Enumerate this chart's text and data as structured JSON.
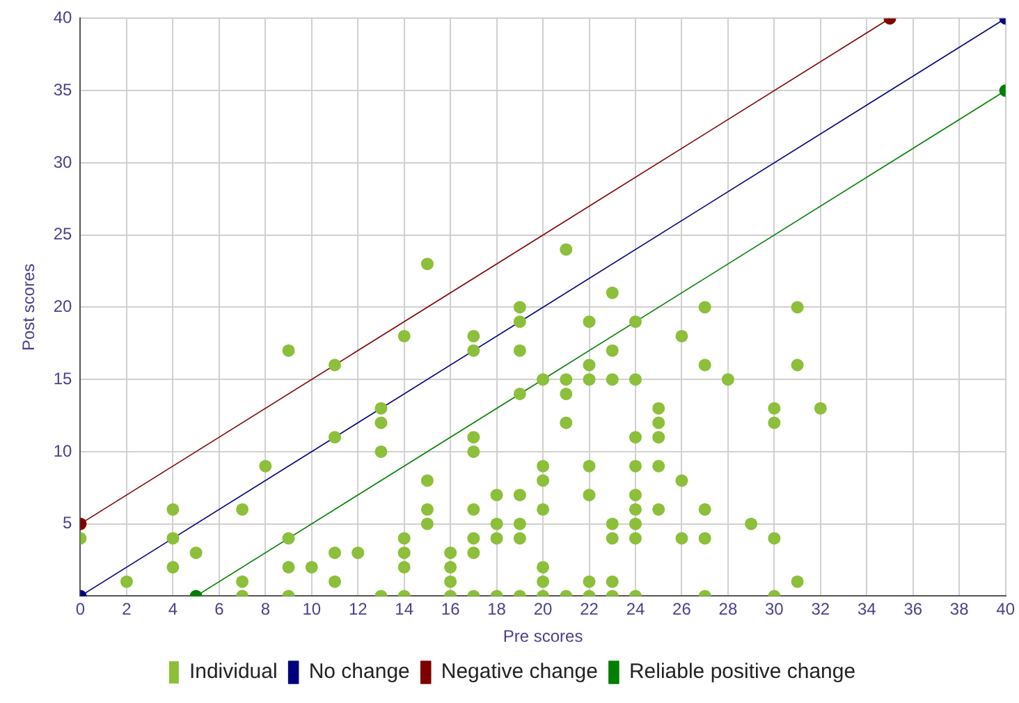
{
  "chart_data": {
    "type": "scatter",
    "xlabel": "Pre scores",
    "ylabel": "Post scores",
    "xlim": [
      0,
      40
    ],
    "xticks": [
      0,
      2,
      4,
      6,
      8,
      10,
      12,
      14,
      16,
      18,
      20,
      22,
      24,
      26,
      28,
      30,
      32,
      34,
      36,
      38,
      40
    ],
    "ylim": [
      0,
      40
    ],
    "yticks": [
      {
        "value": 0,
        "label": null
      },
      5,
      10,
      15,
      20,
      25,
      30,
      35,
      40
    ],
    "grid": true,
    "legend": "bottom",
    "marker": "circle",
    "series": [
      {
        "name": "Individual",
        "color": "#8cbf3a",
        "x": [
          0,
          2,
          4,
          4,
          4,
          5,
          7,
          7,
          7,
          8,
          9,
          9,
          9,
          9,
          10,
          11,
          11,
          11,
          11,
          12,
          13,
          13,
          13,
          13,
          14,
          14,
          14,
          14,
          14,
          15,
          15,
          15,
          15,
          16,
          16,
          16,
          16,
          17,
          17,
          17,
          17,
          17,
          17,
          17,
          17,
          18,
          18,
          18,
          18,
          19,
          19,
          19,
          19,
          19,
          19,
          19,
          19,
          20,
          20,
          20,
          20,
          20,
          20,
          20,
          21,
          21,
          21,
          21,
          21,
          22,
          22,
          22,
          22,
          22,
          22,
          22,
          23,
          23,
          23,
          23,
          23,
          23,
          23,
          24,
          24,
          24,
          24,
          24,
          24,
          24,
          24,
          24,
          25,
          25,
          25,
          25,
          25,
          26,
          26,
          26,
          27,
          27,
          27,
          27,
          27,
          28,
          29,
          30,
          30,
          30,
          30,
          31,
          31,
          31,
          32
        ],
        "values": [
          4,
          1,
          6,
          4,
          2,
          3,
          6,
          1,
          0,
          9,
          17,
          4,
          2,
          0,
          2,
          16,
          11,
          3,
          1,
          3,
          13,
          12,
          10,
          0,
          18,
          4,
          3,
          2,
          0,
          23,
          8,
          6,
          5,
          3,
          2,
          1,
          0,
          18,
          17,
          11,
          10,
          6,
          4,
          3,
          0,
          7,
          5,
          4,
          0,
          20,
          19,
          17,
          14,
          7,
          5,
          4,
          0,
          15,
          9,
          8,
          6,
          2,
          1,
          0,
          24,
          15,
          14,
          12,
          0,
          19,
          16,
          15,
          9,
          7,
          1,
          0,
          21,
          17,
          15,
          5,
          4,
          1,
          0,
          19,
          15,
          11,
          9,
          7,
          6,
          5,
          4,
          0,
          13,
          12,
          11,
          9,
          6,
          18,
          8,
          4,
          20,
          16,
          6,
          4,
          0,
          15,
          5,
          13,
          12,
          4,
          0,
          20,
          16,
          1,
          13
        ]
      },
      {
        "name": "No change",
        "type": "line",
        "color": "#00007f",
        "x": [
          0,
          40
        ],
        "values": [
          0,
          40
        ]
      },
      {
        "name": "Negative change",
        "type": "line",
        "color": "#7f0000",
        "x": [
          0,
          35
        ],
        "values": [
          5,
          40
        ]
      },
      {
        "name": "Reliable positive change",
        "type": "line",
        "color": "#007f00",
        "x": [
          5,
          40
        ],
        "values": [
          0,
          35
        ]
      }
    ]
  }
}
